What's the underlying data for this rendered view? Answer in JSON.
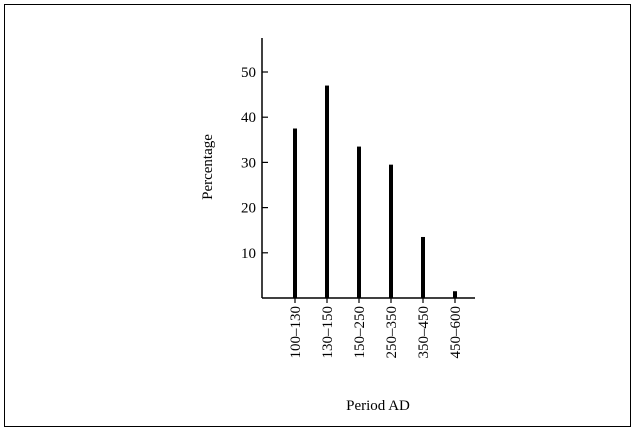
{
  "chart_data": {
    "type": "bar",
    "categories": [
      "100–130",
      "130–150",
      "150–250",
      "250–350",
      "350–450",
      "450–600"
    ],
    "values": [
      37.5,
      47,
      33.5,
      29.5,
      13.5,
      1.5
    ],
    "title": "",
    "xlabel": "Period AD",
    "ylabel": "Percentage",
    "yticks": [
      10,
      20,
      30,
      40,
      50
    ],
    "ylim": [
      0,
      58
    ],
    "grid": false,
    "colors": {
      "bar": "#000000",
      "axis": "#000000"
    }
  }
}
